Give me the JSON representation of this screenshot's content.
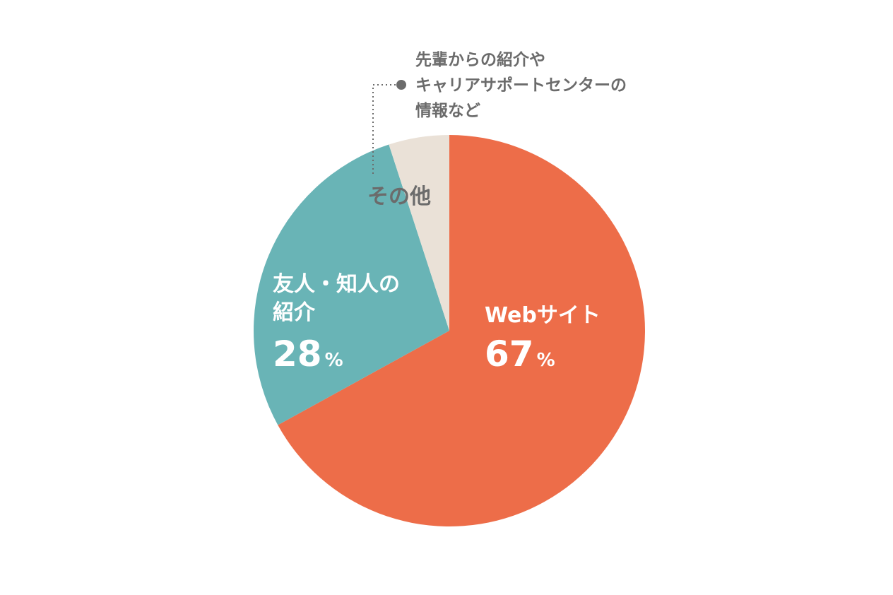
{
  "chart_data": {
    "type": "pie",
    "title": "",
    "slices": [
      {
        "name": "Webサイト",
        "label_lines": [
          "Webサイト"
        ],
        "value": 67,
        "value_text": "67",
        "unit": "%",
        "color": "#ED6D49",
        "label_color": "#FFFFFF"
      },
      {
        "name": "友人・知人の紹介",
        "label_lines": [
          "友人・知人の",
          "紹介"
        ],
        "value": 28,
        "value_text": "28",
        "unit": "%",
        "color": "#69B4B6",
        "label_color": "#FFFFFF"
      },
      {
        "name": "その他",
        "label_lines": [
          "その他"
        ],
        "value": 5,
        "value_text": "",
        "unit": "",
        "color": "#EAE1D7",
        "label_color": "#6B6B6B"
      }
    ],
    "start_angle": "12 o'clock",
    "direction": "clockwise",
    "annotation": {
      "target": "その他",
      "lines": [
        "先輩からの紹介や",
        "キャリアサポートセンターの",
        "情報など"
      ],
      "line_color": "#6B6B6B"
    }
  }
}
